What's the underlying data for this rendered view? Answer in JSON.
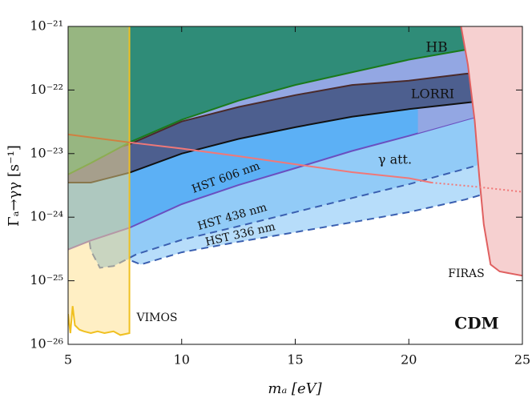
{
  "chart_data": {
    "type": "area",
    "xlabel": "mₐ [eV]",
    "ylabel": "Γₐ→γγ [s⁻¹]",
    "xlim": [
      5,
      25
    ],
    "xticks": [
      5,
      10,
      15,
      20,
      25
    ],
    "ylim": [
      1e-26,
      1e-21
    ],
    "log_y": true,
    "yticks": [
      {
        "value": 1e-26,
        "label": "10⁻²⁶"
      },
      {
        "value": 1e-25,
        "label": "10⁻²⁵"
      },
      {
        "value": 1e-24,
        "label": "10⁻²⁴"
      },
      {
        "value": 1e-23,
        "label": "10⁻²³"
      },
      {
        "value": 1e-22,
        "label": "10⁻²²"
      },
      {
        "value": 1e-21,
        "label": "10⁻²¹"
      }
    ],
    "series": [
      {
        "color": "#3a5fb0",
        "fill": "#b7ddfa",
        "fill_to": "top",
        "dash": true,
        "x": [
          6.9,
          7.0,
          7.2,
          7.6,
          8.2,
          10,
          12.5,
          15,
          17.5,
          20,
          22.5,
          25
        ],
        "values": [
          1e-21,
          3e-24,
          4e-25,
          2.2e-25,
          1.8e-25,
          2.8e-25,
          4.1e-25,
          5.8e-25,
          8.3e-25,
          1.2e-24,
          1.9e-24,
          3.5e-24
        ]
      },
      {
        "color": "#3a5fb0",
        "fill": "#92cbf7",
        "fill_to": "top",
        "dash": true,
        "x": [
          5.4,
          5.5,
          5.7,
          6.0,
          6.4,
          7,
          8,
          10,
          12.5,
          15,
          17.5,
          20,
          22.5,
          25
        ],
        "values": [
          1e-21,
          3e-23,
          1.5e-24,
          3e-25,
          1.6e-25,
          1.7e-25,
          2.6e-25,
          4.4e-25,
          7.2e-25,
          1.2e-24,
          2e-24,
          3.3e-24,
          5.8e-24,
          1.05e-23
        ]
      },
      {
        "color": "#6a4fc0",
        "fill": "#5cb0f5",
        "fill_to": "top",
        "x": [
          5,
          6,
          7.7,
          10,
          12.5,
          15,
          17.5,
          20,
          22.5,
          25
        ],
        "values": [
          3.1e-25,
          4.3e-25,
          6.8e-25,
          1.6e-24,
          3.2e-24,
          5.9e-24,
          1.1e-23,
          1.9e-23,
          3.4e-23,
          6e-23
        ]
      },
      {
        "color": "none",
        "fill": "#93a7e3",
        "fill_to": "top",
        "x": [
          5,
          7.7,
          10,
          12.5,
          15,
          17.5,
          20.4,
          20.4,
          22.5,
          25
        ],
        "values": [
          1e-23,
          1.4e-23,
          3.2e-23,
          5.4e-23,
          8.3e-23,
          1.2e-22,
          1.45e-22,
          2.1e-23,
          3.4e-23,
          6e-23
        ]
      },
      {
        "color": "#4a2a2a",
        "lower_color": "#111111",
        "fill": "#4d5f8f",
        "fill_to": "lower",
        "x": [
          5,
          6,
          7.7,
          10,
          12.5,
          15,
          17.5,
          20,
          22.5,
          25
        ],
        "values": [
          1e-23,
          9.5e-24,
          1.4e-23,
          3.2e-23,
          5.4e-23,
          8.3e-23,
          1.2e-22,
          1.4e-22,
          1.8e-22,
          2.1e-22
        ],
        "lower": [
          3.5e-24,
          3.5e-24,
          5e-24,
          1e-23,
          1.7e-23,
          2.6e-23,
          3.8e-23,
          5e-23,
          6.3e-23,
          7.9e-23
        ]
      },
      {
        "color": "#1a7a1a",
        "fill": "#2f8c78",
        "fill_to": "top",
        "x": [
          5,
          6,
          7,
          7.7,
          10,
          12.5,
          15,
          17.5,
          20,
          22.5,
          25
        ],
        "values": [
          4.7e-24,
          7.1e-24,
          1.1e-23,
          1.5e-23,
          3.4e-23,
          6.8e-23,
          1.2e-22,
          1.9e-22,
          3e-22,
          4.3e-22,
          6.2e-22
        ]
      },
      {
        "color": "#e06060",
        "fill": "#f6d0d0",
        "fill_to": "right",
        "x": [
          22.3,
          22.6,
          22.9,
          23.1,
          23.3,
          23.6,
          24,
          25
        ],
        "values": [
          1e-21,
          2.5e-22,
          3.3e-23,
          4.4e-24,
          7.7e-25,
          1.8e-25,
          1.4e-25,
          1.2e-25
        ]
      },
      {
        "color": "#f0c020",
        "fill": "#ffe08a",
        "fill_to": "top",
        "opacity": 0.5,
        "x": [
          5,
          5.1,
          5.2,
          5.3,
          5.5,
          5.7,
          6,
          6.3,
          6.6,
          7,
          7.3,
          7.7,
          7.7
        ],
        "values": [
          3e-26,
          1.5e-26,
          4e-26,
          2e-26,
          1.7e-26,
          1.6e-26,
          1.5e-26,
          1.6e-26,
          1.5e-26,
          1.6e-26,
          1.4e-26,
          1.5e-26,
          1e-21
        ]
      },
      {
        "color": "#d08040",
        "x": [
          5,
          7.7
        ],
        "values": [
          2e-23,
          1.5e-23
        ]
      },
      {
        "color": "#f07878",
        "x": [
          7.7,
          10,
          12.5,
          15,
          17.5,
          20,
          21
        ],
        "values": [
          1.5e-23,
          1.2e-23,
          9.1e-24,
          6.8e-24,
          5.1e-24,
          4.1e-24,
          3.5e-24
        ]
      },
      {
        "color": "#f07878",
        "dotted": true,
        "x": [
          21,
          23,
          25
        ],
        "values": [
          3.5e-24,
          3e-24,
          2.5e-24
        ]
      }
    ],
    "annotations": [
      "HB",
      "LORRI",
      "γ att.",
      "HST 606 nm",
      "HST 438 nm",
      "HST 336 nm",
      "FIRAS",
      "VIMOS",
      "CDM"
    ]
  }
}
